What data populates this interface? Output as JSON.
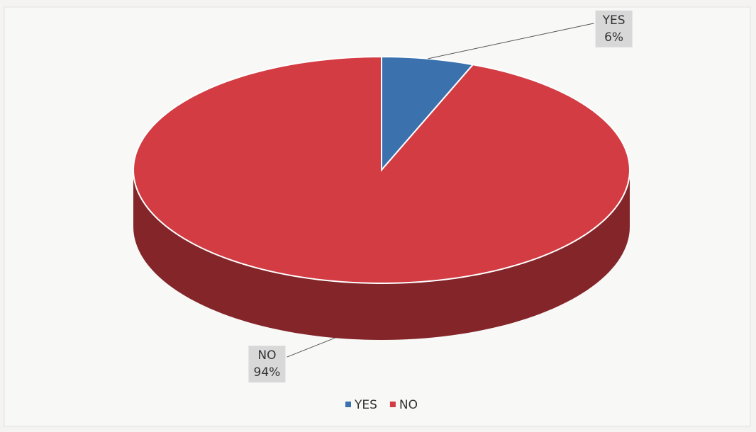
{
  "chart_data": {
    "type": "pie",
    "categories": [
      "YES",
      "NO"
    ],
    "values": [
      6,
      94
    ],
    "value_labels": [
      "6%",
      "94%"
    ],
    "colors": [
      "#3b72ad",
      "#d33c42"
    ],
    "legend": "bottom"
  }
}
